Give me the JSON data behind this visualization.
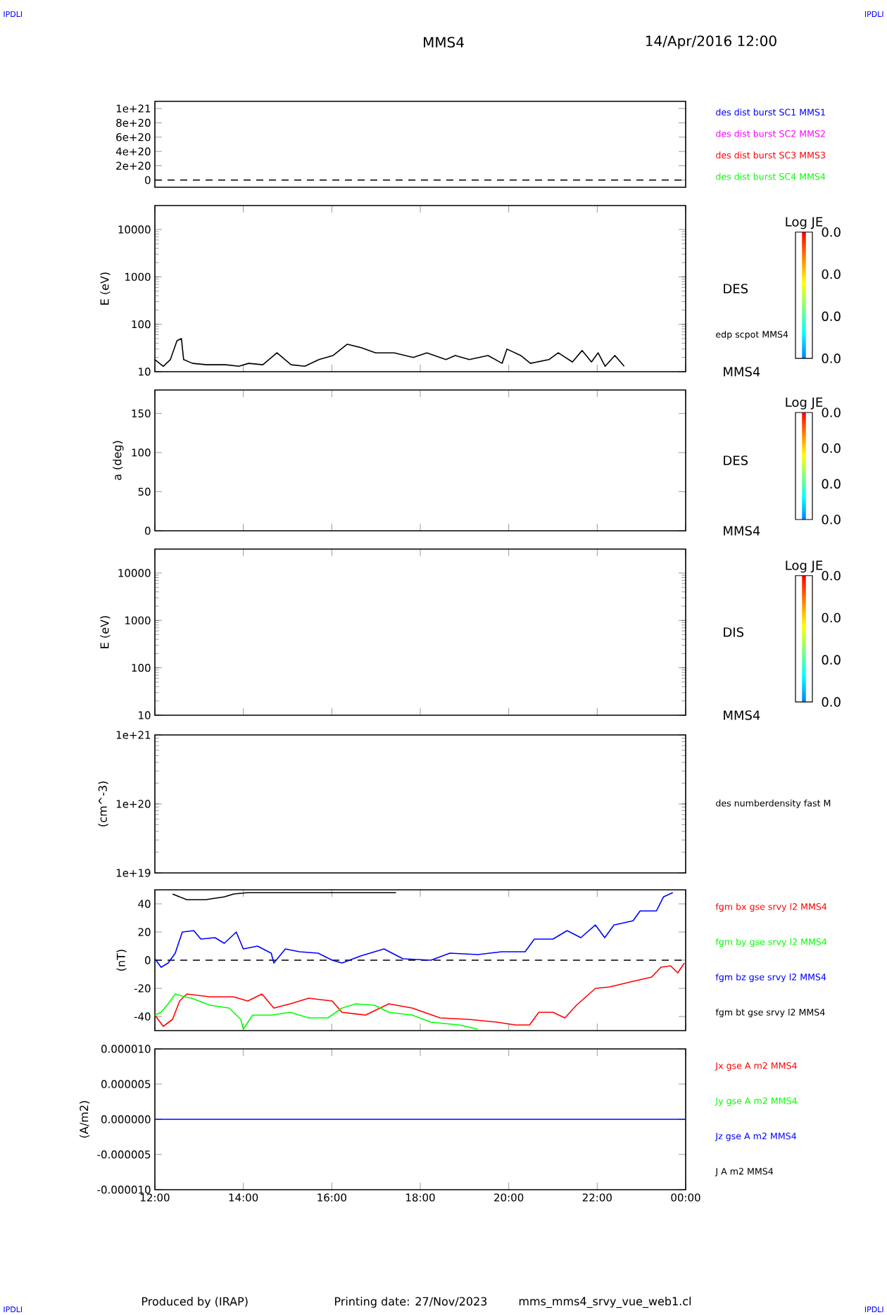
{
  "chart_data": [
    {
      "type": "line",
      "title": "MMS4",
      "subtitle": "14/Apr/2016 12:00",
      "tick_labels": "y",
      "ylim": [
        -1e+20,
        1.1e+21
      ],
      "yticks": [
        {
          "value": 0,
          "label": "0"
        },
        {
          "value": 2e+20,
          "label": "2e+20"
        },
        {
          "value": 4e+20,
          "label": "4e+20"
        },
        {
          "value": 6e+20,
          "label": "6e+20"
        },
        {
          "value": 8e+20,
          "label": "8e+20"
        },
        {
          "value": 1e+21,
          "label": "1e+21"
        }
      ],
      "series": [
        {
          "name": "des dist burst SC1 MMS1",
          "color": "#0000ff"
        },
        {
          "name": "des dist burst SC2 MMS2",
          "color": "#ff00ff"
        },
        {
          "name": "des dist burst SC3 MMS3",
          "color": "#ff0000"
        },
        {
          "name": "des dist burst SC4 MMS4",
          "color": "#00ff00"
        }
      ],
      "ref_lines": [
        {
          "axis": "y",
          "value": 0,
          "line_style": "dashed",
          "color": "#000000"
        }
      ]
    },
    {
      "type": "line",
      "ylabel": "E (eV)",
      "xlim": [
        12,
        24
      ],
      "xticks": [
        {
          "value": 12,
          "label": null
        },
        {
          "value": 14,
          "label": null
        },
        {
          "value": 16,
          "label": null
        },
        {
          "value": 18,
          "label": null
        },
        {
          "value": 20,
          "label": null
        },
        {
          "value": 22,
          "label": null
        },
        {
          "value": 24,
          "label": null
        }
      ],
      "tick_labels": "y",
      "log": "y",
      "ylim": [
        10,
        32000
      ],
      "yticks": [
        10,
        100,
        1000,
        10000
      ],
      "annotations": [
        "DES",
        "MMS4",
        "0.0",
        "0.0",
        "0.0",
        "0.0"
      ],
      "clabel": "Log JE",
      "series": [
        {
          "name": "edp scpot MMS4",
          "color": "#000000",
          "x": [
            12.0,
            12.19,
            12.35,
            12.5,
            12.6,
            12.65,
            12.85,
            13.17,
            13.6,
            13.9,
            14.12,
            14.44,
            14.76,
            15.08,
            15.39,
            15.71,
            16.03,
            16.35,
            16.67,
            16.99,
            17.41,
            17.84,
            18.15,
            18.58,
            18.79,
            19.11,
            19.53,
            19.85,
            19.96,
            20.27,
            20.49,
            20.91,
            21.12,
            21.44,
            21.66,
            21.87,
            22.02,
            22.18,
            22.4,
            22.61
          ],
          "values": [
            18,
            13,
            18,
            45,
            50,
            18,
            15,
            14,
            14,
            13,
            15,
            14,
            25,
            14,
            13,
            18,
            22,
            38,
            32,
            25,
            25,
            20,
            25,
            18,
            22,
            18,
            22,
            15,
            30,
            22,
            15,
            18,
            25,
            16,
            28,
            16,
            25,
            13,
            22,
            13
          ]
        }
      ]
    },
    {
      "type": "line",
      "ylabel": "a (deg)",
      "xlim": [
        12,
        24
      ],
      "xticks": [
        {
          "value": 12,
          "label": null
        },
        {
          "value": 14,
          "label": null
        },
        {
          "value": 16,
          "label": null
        },
        {
          "value": 18,
          "label": null
        },
        {
          "value": 20,
          "label": null
        },
        {
          "value": 22,
          "label": null
        },
        {
          "value": 24,
          "label": null
        }
      ],
      "tick_labels": "y",
      "ylim": [
        0,
        180
      ],
      "yticks": [
        0,
        50,
        100,
        150
      ],
      "annotations": [
        "DES",
        "MMS4",
        "0.0",
        "0.0",
        "0.0",
        "0.0"
      ],
      "clabel": "Log JE"
    },
    {
      "type": "line",
      "ylabel": "E (eV)",
      "xlim": [
        12,
        24
      ],
      "xticks": [
        {
          "value": 12,
          "label": null
        },
        {
          "value": 14,
          "label": null
        },
        {
          "value": 16,
          "label": null
        },
        {
          "value": 18,
          "label": null
        },
        {
          "value": 20,
          "label": null
        },
        {
          "value": 22,
          "label": null
        },
        {
          "value": 24,
          "label": null
        }
      ],
      "tick_labels": "y",
      "log": "y",
      "ylim": [
        10,
        32000
      ],
      "yticks": [
        10,
        100,
        1000,
        10000
      ],
      "annotations": [
        "DIS",
        "MMS4",
        "0.0",
        "0.0",
        "0.0",
        "0.0"
      ],
      "clabel": "Log JE"
    },
    {
      "type": "line",
      "ylabel": "(cm^-3)",
      "tick_labels": "y",
      "log": "y",
      "ylim": [
        1e+19,
        1e+21
      ],
      "yticks": [
        {
          "value": 1e+19,
          "label": "1e+19"
        },
        {
          "value": 1e+20,
          "label": "1e+20"
        },
        {
          "value": 1e+21,
          "label": "1e+21"
        }
      ],
      "series": [
        {
          "name": "des numberdensity fast M",
          "color": "#000000"
        }
      ]
    },
    {
      "type": "line",
      "ylabel": "(nT)",
      "xlim": [
        12,
        24
      ],
      "xticks": [
        {
          "value": 12,
          "label": null
        },
        {
          "value": 14,
          "label": null
        },
        {
          "value": 16,
          "label": null
        },
        {
          "value": 18,
          "label": null
        },
        {
          "value": 20,
          "label": null
        },
        {
          "value": 22,
          "label": null
        },
        {
          "value": 24,
          "label": null
        }
      ],
      "tick_labels": "y",
      "ylim": [
        -50,
        50
      ],
      "yticks": [
        -40,
        -20,
        0,
        20,
        40
      ],
      "ref_lines": [
        {
          "axis": "y",
          "value": 0,
          "line_style": "dashed",
          "color": "#000000"
        }
      ],
      "series": [
        {
          "name": "fgm bx gse srvy l2 MMS4",
          "color": "#ff0000",
          "x": [
            12.0,
            12.19,
            12.4,
            12.56,
            12.72,
            13.24,
            13.78,
            14.1,
            14.42,
            14.69,
            15.06,
            15.48,
            16.01,
            16.23,
            16.76,
            17.29,
            17.82,
            18.45,
            19.09,
            19.73,
            20.15,
            20.47,
            20.68,
            21.0,
            21.27,
            21.53,
            21.96,
            22.28,
            22.81,
            23.23,
            23.44,
            23.66,
            23.82,
            23.97
          ],
          "values": [
            -39,
            -47,
            -42,
            -29,
            -24,
            -26,
            -26,
            -29,
            -24,
            -34,
            -31,
            -27,
            -29,
            -37,
            -39,
            -31,
            -34,
            -41,
            -42,
            -44,
            -46,
            -46,
            -37,
            -37,
            -41,
            -32,
            -20,
            -19,
            -15,
            -12,
            -5,
            -4,
            -9,
            -2
          ]
        },
        {
          "name": "fgm by gse srvy l2 MMS4",
          "color": "#00ff00",
          "x": [
            12.0,
            12.14,
            12.3,
            12.46,
            12.67,
            12.83,
            13.25,
            13.68,
            13.94,
            14.0,
            14.21,
            14.63,
            15.06,
            15.48,
            15.91,
            16.23,
            16.54,
            16.97,
            17.29,
            17.82,
            18.24,
            18.88,
            19.3
          ],
          "values": [
            -39,
            -37,
            -31,
            -24,
            -26,
            -27,
            -32,
            -34,
            -42,
            -49,
            -39,
            -39,
            -37,
            -41,
            -41,
            -34,
            -31,
            -32,
            -37,
            -39,
            -44,
            -46,
            -49
          ]
        },
        {
          "name": "fgm bz gse srvy l2 MMS4",
          "color": "#0000ff",
          "x": [
            12.0,
            12.14,
            12.3,
            12.46,
            12.62,
            12.88,
            13.04,
            13.36,
            13.57,
            13.84,
            14.0,
            14.32,
            14.63,
            14.69,
            14.95,
            15.27,
            15.69,
            16.01,
            16.23,
            16.65,
            17.18,
            17.61,
            18.24,
            18.67,
            19.3,
            19.84,
            20.37,
            20.58,
            21.0,
            21.32,
            21.63,
            21.96,
            22.17,
            22.38,
            22.81,
            22.97,
            23.34,
            23.5,
            23.71
          ],
          "values": [
            1,
            -5,
            -2,
            5,
            20,
            21,
            15,
            16,
            12,
            20,
            8,
            10,
            5,
            -2,
            8,
            6,
            5,
            0,
            -2,
            3,
            8,
            1,
            0,
            5,
            4,
            6,
            6,
            15,
            15,
            21,
            16,
            25,
            16,
            25,
            28,
            35,
            35,
            45,
            48
          ]
        },
        {
          "name": "fgm bt gse srvy l2 MMS4",
          "color": "#000000",
          "x": [
            12.4,
            12.72,
            13.15,
            13.57,
            13.78,
            14.1,
            14.63,
            15.27,
            15.91,
            16.54,
            17.45
          ],
          "values": [
            47,
            43,
            43,
            45,
            47,
            48,
            48,
            48,
            48,
            48,
            48
          ]
        }
      ]
    },
    {
      "type": "line",
      "ylabel": "(A/m2)",
      "xlim": [
        12,
        24
      ],
      "xticks": [
        {
          "value": 12,
          "label": "12:00"
        },
        {
          "value": 14,
          "label": "14:00"
        },
        {
          "value": 16,
          "label": "16:00"
        },
        {
          "value": 18,
          "label": "18:00"
        },
        {
          "value": 20,
          "label": "20:00"
        },
        {
          "value": 22,
          "label": "22:00"
        },
        {
          "value": 24,
          "label": "00:00"
        }
      ],
      "ylim": [
        -1e-05,
        1e-05
      ],
      "yticks": [
        {
          "value": -1e-05,
          "label": "-0.000010"
        },
        {
          "value": -5e-06,
          "label": "-0.000005"
        },
        {
          "value": 0,
          "label": "0.000000"
        },
        {
          "value": 5e-06,
          "label": "0.000005"
        },
        {
          "value": 1e-05,
          "label": "0.000010"
        }
      ],
      "annotations": [
        "Produced by (IRAP)",
        "Printing date: 27/Nov/2023",
        "mms_mms4_srvy_vue_web1.cl",
        "IPDLI",
        "IPDLI",
        "IPDLI",
        "IPDLI"
      ],
      "series": [
        {
          "name": "Jx gse A m2 MMS4",
          "color": "#ff0000"
        },
        {
          "name": "Jy gse A m2 MMS4",
          "color": "#00ff00"
        },
        {
          "name": "Jz gse A m2 MMS4",
          "color": "#0000ff",
          "x": [
            12,
            18,
            24
          ],
          "values": [
            0,
            0,
            0
          ]
        },
        {
          "name": "J A m2 MMS4",
          "color": "#000000"
        }
      ]
    }
  ]
}
